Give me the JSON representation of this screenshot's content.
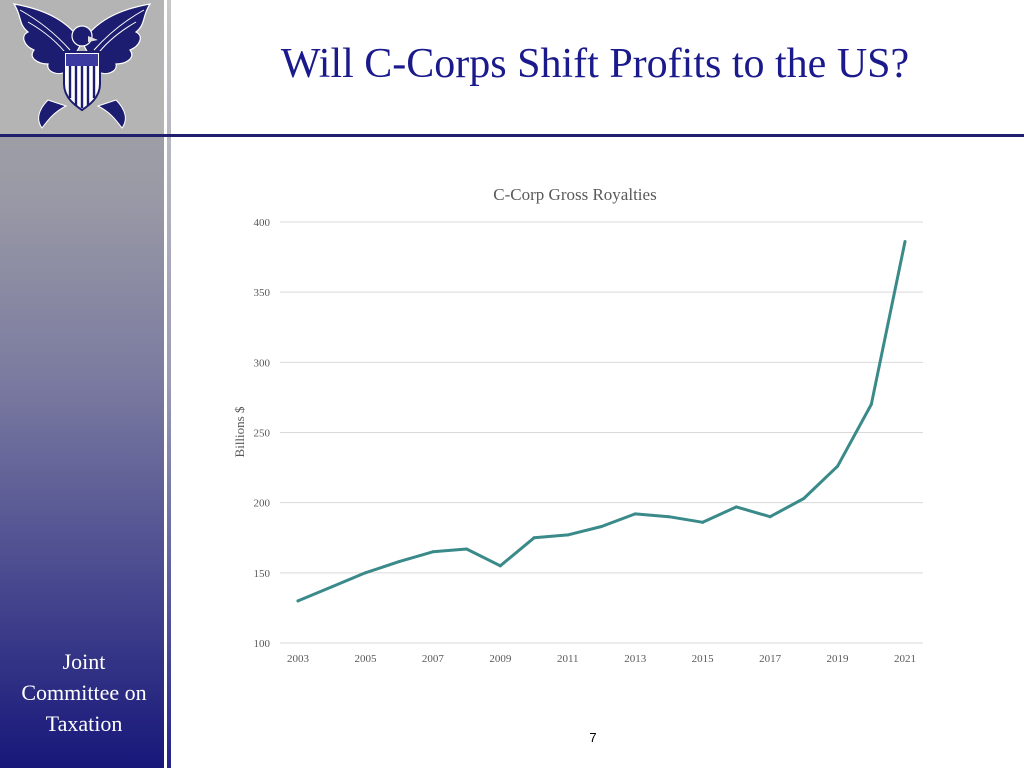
{
  "slide": {
    "title": "Will C-Corps Shift Profits to the US?",
    "org_lines": [
      "Joint",
      "Committee on",
      "Taxation"
    ],
    "page_number": "7",
    "logo": "eagle-seal-icon"
  },
  "colors": {
    "title": "#1a1a8c",
    "rule": "#1f1f6e",
    "line": "#3a8a8a",
    "gridline": "#d9d9d9",
    "axis_text": "#595959"
  },
  "chart_data": {
    "type": "line",
    "title": "C-Corp Gross Royalties",
    "ylabel": "Billions $",
    "xlabel": "",
    "ylim": [
      100,
      400
    ],
    "yticks": [
      100,
      150,
      200,
      250,
      300,
      350,
      400
    ],
    "xtick_labels": [
      "2003",
      "2005",
      "2007",
      "2009",
      "2011",
      "2013",
      "2015",
      "2017",
      "2019",
      "2021"
    ],
    "grid": true,
    "series": [
      {
        "x": [
          2003,
          2004,
          2005,
          2006,
          2007,
          2008,
          2009,
          2010,
          2011,
          2012,
          2013,
          2014,
          2015,
          2016,
          2017,
          2018,
          2019,
          2020,
          2021
        ],
        "values": [
          130,
          140,
          150,
          158,
          165,
          167,
          155,
          175,
          177,
          183,
          192,
          190,
          186,
          197,
          190,
          203,
          226,
          270,
          386
        ]
      }
    ]
  }
}
